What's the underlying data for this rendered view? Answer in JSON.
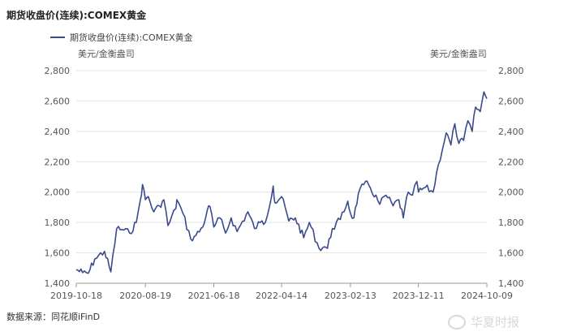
{
  "chart_data": {
    "type": "line",
    "title": "期货收盘价(连续):COMEX黄金",
    "ylabel_left": "美元/金衡盎司",
    "ylabel_right": "美元/金衡盎司",
    "ylim": [
      1400,
      2800
    ],
    "yticks": [
      1400,
      1600,
      1800,
      2000,
      2200,
      2400,
      2600,
      2800
    ],
    "ytick_labels": [
      "1,400",
      "1,600",
      "1,800",
      "2,000",
      "2,200",
      "2,400",
      "2,600",
      "2,800"
    ],
    "xlim": [
      "2019-10-18",
      "2024-10-09"
    ],
    "xtick_labels": [
      "2019-10-18",
      "2020-08-19",
      "2021-06-18",
      "2022-04-14",
      "2023-02-13",
      "2023-12-11",
      "2024-10-09"
    ],
    "grid": "horizontal",
    "legend": "top-left",
    "color": "#3b4a8c",
    "series": [
      {
        "name": "期货收盘价(连续):COMEX黄金",
        "points": [
          [
            "2019-10-18",
            1490
          ],
          [
            "2019-11-15",
            1470
          ],
          [
            "2019-12-10",
            1465
          ],
          [
            "2020-01-08",
            1560
          ],
          [
            "2020-02-20",
            1610
          ],
          [
            "2020-03-19",
            1475
          ],
          [
            "2020-04-14",
            1760
          ],
          [
            "2020-05-15",
            1750
          ],
          [
            "2020-06-10",
            1730
          ],
          [
            "2020-07-10",
            1800
          ],
          [
            "2020-07-28",
            1950
          ],
          [
            "2020-08-06",
            2050
          ],
          [
            "2020-08-19",
            1950
          ],
          [
            "2020-09-01",
            1970
          ],
          [
            "2020-09-25",
            1870
          ],
          [
            "2020-10-20",
            1910
          ],
          [
            "2020-11-09",
            1950
          ],
          [
            "2020-11-27",
            1780
          ],
          [
            "2020-12-31",
            1890
          ],
          [
            "2021-01-05",
            1950
          ],
          [
            "2021-02-01",
            1860
          ],
          [
            "2021-03-08",
            1690
          ],
          [
            "2021-03-31",
            1715
          ],
          [
            "2021-04-30",
            1770
          ],
          [
            "2021-05-20",
            1880
          ],
          [
            "2021-06-01",
            1905
          ],
          [
            "2021-06-18",
            1770
          ],
          [
            "2021-07-15",
            1830
          ],
          [
            "2021-08-09",
            1730
          ],
          [
            "2021-09-03",
            1830
          ],
          [
            "2021-09-29",
            1740
          ],
          [
            "2021-11-16",
            1870
          ],
          [
            "2021-12-15",
            1760
          ],
          [
            "2022-01-10",
            1800
          ],
          [
            "2022-02-01",
            1800
          ],
          [
            "2022-03-08",
            2040
          ],
          [
            "2022-03-15",
            1930
          ],
          [
            "2022-04-14",
            1970
          ],
          [
            "2022-05-16",
            1810
          ],
          [
            "2022-06-14",
            1830
          ],
          [
            "2022-07-21",
            1700
          ],
          [
            "2022-08-15",
            1800
          ],
          [
            "2022-09-27",
            1630
          ],
          [
            "2022-10-20",
            1640
          ],
          [
            "2022-11-03",
            1630
          ],
          [
            "2022-11-25",
            1760
          ],
          [
            "2022-12-30",
            1820
          ],
          [
            "2023-02-01",
            1940
          ],
          [
            "2023-02-13",
            1860
          ],
          [
            "2023-02-28",
            1830
          ],
          [
            "2023-03-20",
            1990
          ],
          [
            "2023-04-13",
            2050
          ],
          [
            "2023-05-04",
            2050
          ],
          [
            "2023-06-23",
            1920
          ],
          [
            "2023-07-20",
            1980
          ],
          [
            "2023-08-21",
            1910
          ],
          [
            "2023-09-15",
            1950
          ],
          [
            "2023-10-05",
            1830
          ],
          [
            "2023-10-27",
            2000
          ],
          [
            "2023-11-15",
            1980
          ],
          [
            "2023-12-04",
            2070
          ],
          [
            "2023-12-11",
            2000
          ],
          [
            "2024-01-10",
            2030
          ],
          [
            "2024-02-14",
            2000
          ],
          [
            "2024-03-08",
            2180
          ],
          [
            "2024-04-12",
            2390
          ],
          [
            "2024-05-03",
            2310
          ],
          [
            "2024-05-20",
            2450
          ],
          [
            "2024-06-07",
            2320
          ],
          [
            "2024-06-28",
            2340
          ],
          [
            "2024-07-17",
            2470
          ],
          [
            "2024-08-05",
            2400
          ],
          [
            "2024-08-20",
            2560
          ],
          [
            "2024-09-10",
            2530
          ],
          [
            "2024-09-26",
            2660
          ],
          [
            "2024-10-09",
            2615
          ]
        ]
      }
    ]
  },
  "source_label": "数据来源：同花顺iFinD",
  "watermark_text": "华夏时报"
}
